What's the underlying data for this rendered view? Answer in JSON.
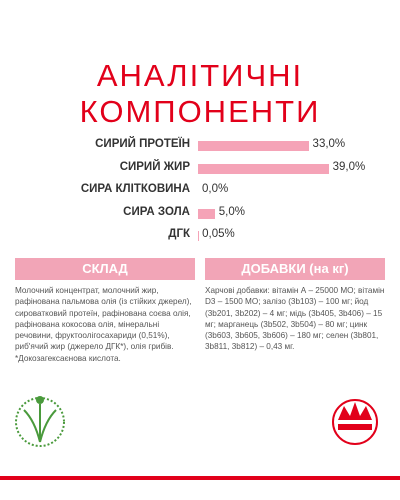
{
  "title_lines": [
    "АНАЛІТИЧНІ",
    "КОМПОНЕНТИ"
  ],
  "components": [
    {
      "name": "СИРИЙ ПРОТЕЇН",
      "value": 33.0,
      "value_label": "33,0%"
    },
    {
      "name": "СИРИЙ ЖИР",
      "value": 39.0,
      "value_label": "39,0%"
    },
    {
      "name": "СИРА КЛІТКОВИНА",
      "value": 0.0,
      "value_label": "0,0%"
    },
    {
      "name": "СИРА ЗОЛА",
      "value": 5.0,
      "value_label": "5,0%"
    },
    {
      "name": "ДГК",
      "value": 0.05,
      "value_label": "0,05%"
    }
  ],
  "composition": {
    "title": "СКЛАД",
    "text": "Молочний концентрат, молочний жир, рафінована пальмова олія (із стійких джерел), сироватковий протеїн, рафінована соєва олія, рафінована кокосова олія, мінеральні речовини, фруктоолігосахариди (0,51%), риб'ячий жир (джерело ДГК*), олія грибів.",
    "note": "*Докозагексаєнова кислота."
  },
  "additives": {
    "title": "ДОБАВКИ (на кг)",
    "text": "Харчові добавки: вітамін А – 25000 МО; вітамін D3 – 1500 МО; залізо (3b103) – 100 мг; йод (3b201, 3b202) – 4 мг; мідь (3b405, 3b406) – 15 мг; марганець (3b502, 3b504) – 80 мг; цинк (3b603, 3b605, 3b606) – 180 мг; селен (3b801, 3b811, 3b812) – 0,43 мг."
  }
}
